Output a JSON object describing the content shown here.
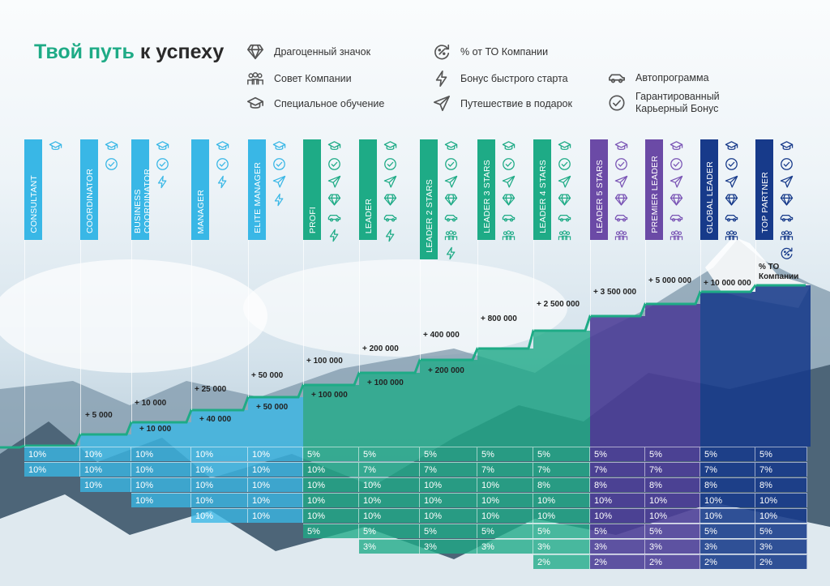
{
  "title": {
    "part1": "Твой путь",
    "part2": "к успеху"
  },
  "legend": [
    {
      "icon": "diamond-icon",
      "label": "Драгоценный значок"
    },
    {
      "icon": "team-icon",
      "label": "Совет Компании"
    },
    {
      "icon": "graduation-cap-icon",
      "label": "Специальное обучение"
    },
    {
      "icon": "percent-circle-icon",
      "label": "% от ТО Компании"
    },
    {
      "icon": "lightning-icon",
      "label": "Бонус быстрого старта"
    },
    {
      "icon": "paper-plane-icon",
      "label": "Путешествие в подарок"
    },
    {
      "icon": "car-icon",
      "label": "Автопрограмма"
    },
    {
      "icon": "check-circle-icon",
      "label": "Гарантированный\nКарьерный Бонус"
    }
  ],
  "colors": {
    "light_blue": "#39b7e6",
    "green": "#1eab86",
    "purple": "#6b4aa6",
    "navy": "#173a8a"
  },
  "ranks": [
    {
      "name": "CONSULTANT",
      "icons": [
        "graduation-cap-icon"
      ],
      "amount": "",
      "amount2": "",
      "percents": [
        "10%",
        "10%"
      ]
    },
    {
      "name": "COORDINATOR",
      "icons": [
        "graduation-cap-icon",
        "check-circle-icon"
      ],
      "amount": "+ 5 000",
      "amount2": "",
      "percents": [
        "10%",
        "10%",
        "10%"
      ]
    },
    {
      "name": "BUSINESS\nCOORDINATOR",
      "icons": [
        "graduation-cap-icon",
        "check-circle-icon",
        "lightning-icon"
      ],
      "amount": "+ 10 000",
      "amount2": "+ 10 000",
      "percents": [
        "10%",
        "10%",
        "10%",
        "10%"
      ]
    },
    {
      "name": "MANAGER",
      "icons": [
        "graduation-cap-icon",
        "check-circle-icon",
        "lightning-icon"
      ],
      "amount": "+ 25 000",
      "amount2": "+ 40 000",
      "percents": [
        "10%",
        "10%",
        "10%",
        "10%",
        "10%"
      ]
    },
    {
      "name": "ELITE MANAGER",
      "icons": [
        "graduation-cap-icon",
        "check-circle-icon",
        "paper-plane-icon",
        "lightning-icon"
      ],
      "amount": "+ 50 000",
      "amount2": "+ 50 000",
      "percents": [
        "10%",
        "10%",
        "10%",
        "10%",
        "10%"
      ]
    },
    {
      "name": "PROFI",
      "icons": [
        "graduation-cap-icon",
        "check-circle-icon",
        "paper-plane-icon",
        "diamond-icon",
        "car-icon",
        "lightning-icon"
      ],
      "amount": "+ 100 000",
      "amount2": "+ 100 000",
      "percents": [
        "5%",
        "10%",
        "10%",
        "10%",
        "10%",
        "5%"
      ]
    },
    {
      "name": "LEADER",
      "icons": [
        "graduation-cap-icon",
        "check-circle-icon",
        "paper-plane-icon",
        "diamond-icon",
        "car-icon",
        "lightning-icon"
      ],
      "amount": "+ 200 000",
      "amount2": "+ 100 000",
      "percents": [
        "5%",
        "7%",
        "10%",
        "10%",
        "10%",
        "5%",
        "3%"
      ]
    },
    {
      "name": "LEADER 2 STARS",
      "icons": [
        "graduation-cap-icon",
        "check-circle-icon",
        "paper-plane-icon",
        "diamond-icon",
        "car-icon",
        "team-icon",
        "lightning-icon"
      ],
      "amount": "+ 400 000",
      "amount2": "+ 200 000",
      "percents": [
        "5%",
        "7%",
        "10%",
        "10%",
        "10%",
        "5%",
        "3%"
      ]
    },
    {
      "name": "LEADER 3 STARS",
      "icons": [
        "graduation-cap-icon",
        "check-circle-icon",
        "paper-plane-icon",
        "diamond-icon",
        "car-icon",
        "team-icon"
      ],
      "amount": "+ 800 000",
      "amount2": "",
      "percents": [
        "5%",
        "7%",
        "10%",
        "10%",
        "10%",
        "5%",
        "3%"
      ]
    },
    {
      "name": "LEADER 4 STARS",
      "icons": [
        "graduation-cap-icon",
        "check-circle-icon",
        "paper-plane-icon",
        "diamond-icon",
        "car-icon",
        "team-icon"
      ],
      "amount": "+ 2 500 000",
      "amount2": "",
      "percents": [
        "5%",
        "7%",
        "8%",
        "10%",
        "10%",
        "5%",
        "3%",
        "2%"
      ]
    },
    {
      "name": "LEADER 5 STARS",
      "icons": [
        "graduation-cap-icon",
        "check-circle-icon",
        "paper-plane-icon",
        "diamond-icon",
        "car-icon",
        "team-icon"
      ],
      "amount": "+ 3 500 000",
      "amount2": "",
      "percents": [
        "5%",
        "7%",
        "8%",
        "10%",
        "10%",
        "5%",
        "3%",
        "2%"
      ]
    },
    {
      "name": "PREMIER LEADER",
      "icons": [
        "graduation-cap-icon",
        "check-circle-icon",
        "paper-plane-icon",
        "diamond-icon",
        "car-icon",
        "team-icon"
      ],
      "amount": "+ 5 000 000",
      "amount2": "",
      "percents": [
        "5%",
        "7%",
        "8%",
        "10%",
        "10%",
        "5%",
        "3%",
        "2%"
      ]
    },
    {
      "name": "GLOBAL LEADER",
      "icons": [
        "graduation-cap-icon",
        "check-circle-icon",
        "paper-plane-icon",
        "diamond-icon",
        "car-icon",
        "team-icon"
      ],
      "amount": "+ 10 000 000",
      "amount2": "",
      "percents": [
        "5%",
        "7%",
        "8%",
        "10%",
        "10%",
        "5%",
        "3%",
        "2%"
      ]
    },
    {
      "name": "TOP PARTNER",
      "icons": [
        "graduation-cap-icon",
        "check-circle-icon",
        "paper-plane-icon",
        "diamond-icon",
        "car-icon",
        "team-icon",
        "percent-circle-icon"
      ],
      "amount": "% ТО\nКомпании",
      "amount2": "",
      "percents": [
        "5%",
        "7%",
        "8%",
        "10%",
        "10%",
        "5%",
        "3%",
        "2%"
      ]
    }
  ]
}
